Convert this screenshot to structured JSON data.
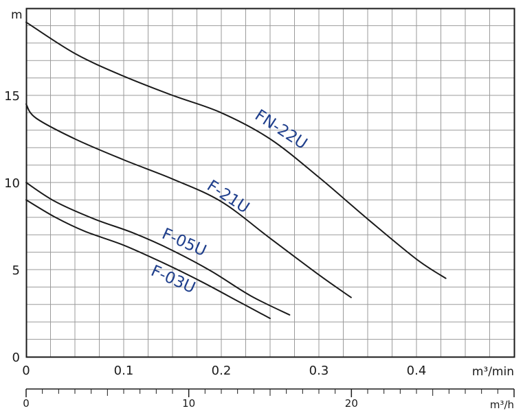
{
  "chart_data": {
    "type": "line",
    "xlabel": "m³/min",
    "x2label": "m³/h",
    "ylabel": "m",
    "xlim": [
      0,
      0.5
    ],
    "ylim": [
      0,
      20
    ],
    "x2lim": [
      0,
      30
    ],
    "xticks": [
      {
        "v": 0,
        "label": "0"
      },
      {
        "v": 0.1,
        "label": "0.1"
      },
      {
        "v": 0.2,
        "label": "0.2"
      },
      {
        "v": 0.3,
        "label": "0.3"
      },
      {
        "v": 0.4,
        "label": "0.4"
      }
    ],
    "yticks": [
      {
        "v": 0,
        "label": "0"
      },
      {
        "v": 5,
        "label": "5"
      },
      {
        "v": 10,
        "label": "10"
      },
      {
        "v": 15,
        "label": "15"
      }
    ],
    "x2ticks": [
      {
        "v": 0,
        "label": "0"
      },
      {
        "v": 10,
        "label": "10"
      },
      {
        "v": 20,
        "label": "20"
      }
    ],
    "grid": true,
    "series": [
      {
        "name": "FN-22U",
        "x": [
          0,
          0.05,
          0.1,
          0.15,
          0.2,
          0.25,
          0.3,
          0.35,
          0.4,
          0.43
        ],
        "y": [
          19.2,
          17.4,
          16.1,
          15.0,
          14.0,
          12.5,
          10.3,
          7.9,
          5.6,
          4.5
        ]
      },
      {
        "name": "F-21U",
        "x": [
          0,
          0.01,
          0.05,
          0.1,
          0.15,
          0.2,
          0.25,
          0.3,
          0.333
        ],
        "y": [
          14.5,
          13.7,
          12.5,
          11.3,
          10.2,
          8.9,
          6.8,
          4.7,
          3.4
        ]
      },
      {
        "name": "F-05U",
        "x": [
          0,
          0.03,
          0.07,
          0.11,
          0.15,
          0.19,
          0.23,
          0.27
        ],
        "y": [
          10.0,
          8.9,
          7.9,
          7.1,
          6.1,
          4.9,
          3.5,
          2.4
        ]
      },
      {
        "name": "F-03U",
        "x": [
          0,
          0.03,
          0.06,
          0.1,
          0.14,
          0.18,
          0.22,
          0.25
        ],
        "y": [
          9.0,
          8.0,
          7.2,
          6.4,
          5.4,
          4.3,
          3.1,
          2.2
        ]
      }
    ]
  }
}
